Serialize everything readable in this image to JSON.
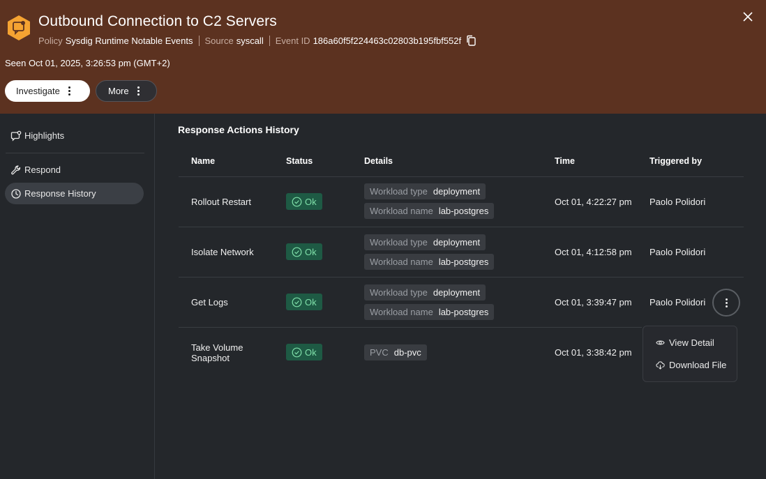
{
  "header": {
    "title": "Outbound Connection to C2 Servers",
    "icon": "event-hex-icon",
    "accent_color": "#f5a332",
    "background_color": "#5c3220",
    "meta": {
      "policy_label": "Policy",
      "policy_value": "Sysdig Runtime Notable Events",
      "source_label": "Source",
      "source_value": "syscall",
      "event_id_label": "Event ID",
      "event_id_value": "186a60f5f224463c02803b195fbf552f"
    },
    "seen": "Seen Oct 01, 2025, 3:26:53 pm (GMT+2)",
    "investigate_label": "Investigate",
    "more_label": "More"
  },
  "sidebar": {
    "items": [
      {
        "label": "Highlights",
        "icon": "highlights-icon",
        "active": false
      },
      {
        "label": "Respond",
        "icon": "wrench-icon",
        "active": false
      },
      {
        "label": "Response History",
        "icon": "history-icon",
        "active": true
      }
    ]
  },
  "main": {
    "title": "Response Actions History",
    "columns": [
      "Name",
      "Status",
      "Details",
      "Time",
      "Triggered by"
    ],
    "rows": [
      {
        "name": "Rollout Restart",
        "status": "Ok",
        "details": [
          {
            "key": "Workload type",
            "value": "deployment"
          },
          {
            "key": "Workload name",
            "value": "lab-postgres"
          }
        ],
        "time": "Oct 01, 4:22:27 pm",
        "triggered_by": "Paolo Polidori"
      },
      {
        "name": "Isolate Network",
        "status": "Ok",
        "details": [
          {
            "key": "Workload type",
            "value": "deployment"
          },
          {
            "key": "Workload name",
            "value": "lab-postgres"
          }
        ],
        "time": "Oct 01, 4:12:58 pm",
        "triggered_by": "Paolo Polidori"
      },
      {
        "name": "Get Logs",
        "status": "Ok",
        "details": [
          {
            "key": "Workload type",
            "value": "deployment"
          },
          {
            "key": "Workload name",
            "value": "lab-postgres"
          }
        ],
        "time": "Oct 01, 3:39:47 pm",
        "triggered_by": "Paolo Polidori"
      },
      {
        "name_line1": "Take Volume",
        "name_line2": "Snapshot",
        "status": "Ok",
        "details": [
          {
            "key": "PVC",
            "value": "db-pvc"
          }
        ],
        "time": "Oct 01, 3:38:42 pm",
        "triggered_by": ""
      }
    ],
    "status_color": "#7fe0a9"
  },
  "row_menu": {
    "items": [
      {
        "label": "View Detail",
        "icon": "eye-icon"
      },
      {
        "label": "Download File",
        "icon": "cloud-download-icon"
      }
    ]
  }
}
